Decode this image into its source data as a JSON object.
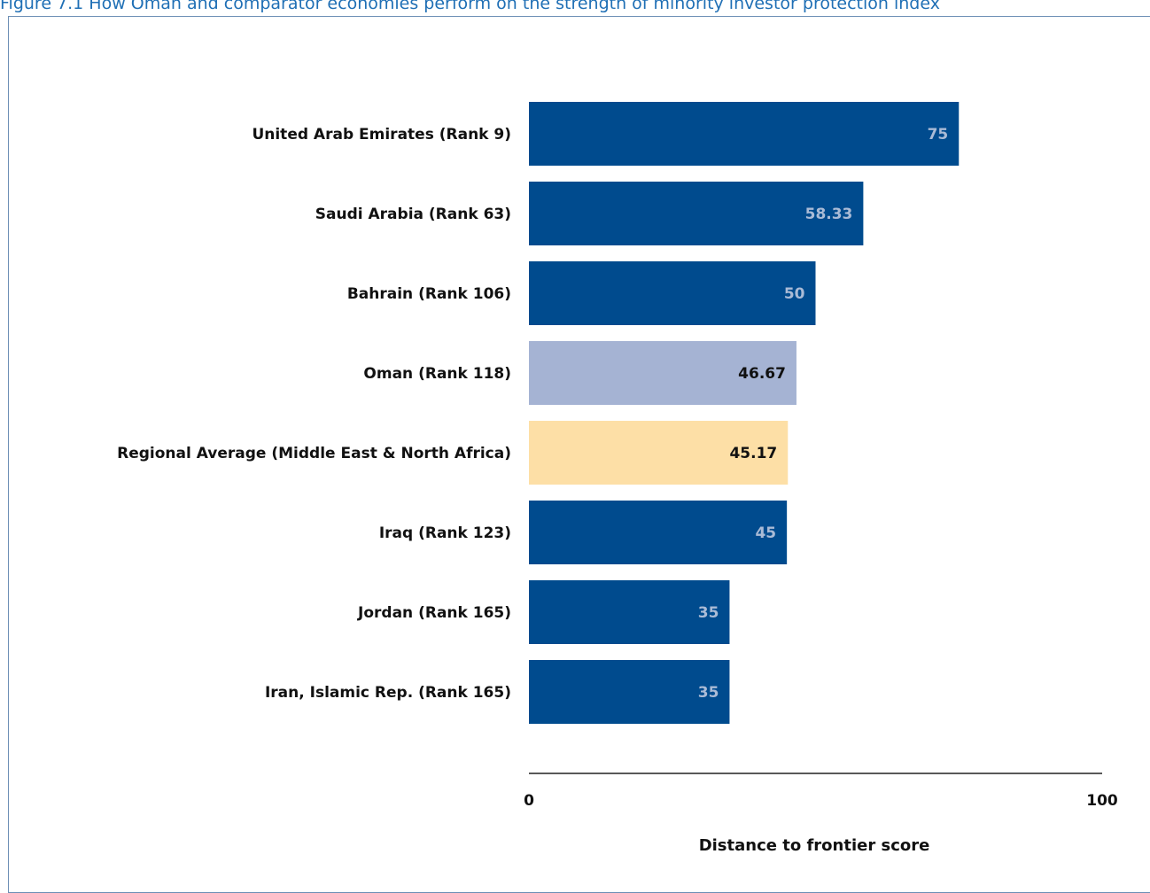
{
  "figure_title": "Figure 7.1 How Oman and comparator economies perform on the strength of minority investor protection index",
  "colors": {
    "default_bar": "#004b8e",
    "highlight_bar": "#a5b3d3",
    "average_bar": "#fddfa6",
    "light_value_text": "#aabbd6",
    "dark_value_text": "#111111",
    "title_text": "#1f6fb5"
  },
  "chart_data": {
    "type": "bar",
    "orientation": "horizontal",
    "categories": [
      "United Arab Emirates (Rank 9)",
      "Saudi Arabia (Rank 63)",
      "Bahrain (Rank 106)",
      "Oman (Rank 118)",
      "Regional Average (Middle East & North Africa)",
      "Iraq (Rank 123)",
      "Jordan (Rank 165)",
      "Iran, Islamic Rep. (Rank 165)"
    ],
    "values": [
      75,
      58.33,
      50,
      46.67,
      45.17,
      45,
      35,
      35
    ],
    "value_labels": [
      "75",
      "58.33",
      "50",
      "46.67",
      "45.17",
      "45",
      "35",
      "35"
    ],
    "bar_styles": [
      "default",
      "default",
      "default",
      "highlight",
      "average",
      "default",
      "default",
      "default"
    ],
    "xlim": [
      0,
      100
    ],
    "xticks": [
      "0",
      "100"
    ],
    "xlabel": "Distance to frontier score",
    "grid": false,
    "legend": "none"
  }
}
